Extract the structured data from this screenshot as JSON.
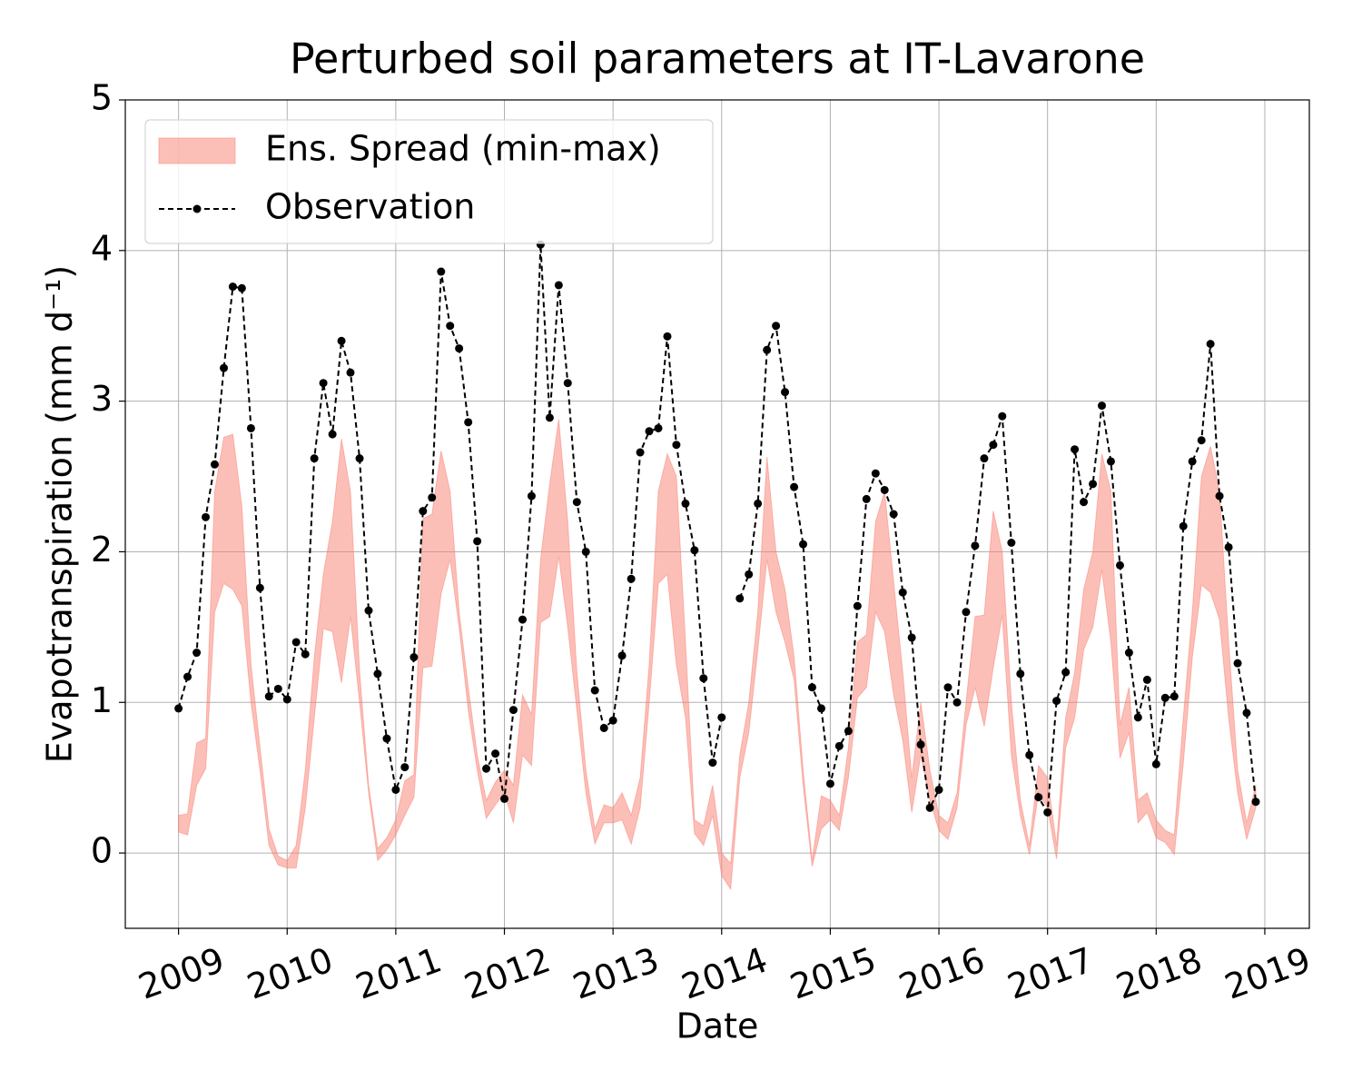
{
  "chart_data": {
    "type": "line",
    "title": "Perturbed soil parameters at IT-Lavarone",
    "x_label": "Date",
    "y_label": "Evapotranspiration  (mm d⁻¹)",
    "x": [
      2009,
      2009.083,
      2009.167,
      2009.25,
      2009.333,
      2009.417,
      2009.5,
      2009.583,
      2009.667,
      2009.75,
      2009.833,
      2009.917,
      2010,
      2010.083,
      2010.167,
      2010.25,
      2010.333,
      2010.417,
      2010.5,
      2010.583,
      2010.667,
      2010.75,
      2010.833,
      2010.917,
      2011,
      2011.083,
      2011.167,
      2011.25,
      2011.333,
      2011.417,
      2011.5,
      2011.583,
      2011.667,
      2011.75,
      2011.833,
      2011.917,
      2012,
      2012.083,
      2012.167,
      2012.25,
      2012.333,
      2012.417,
      2012.5,
      2012.583,
      2012.667,
      2012.75,
      2012.833,
      2012.917,
      2013,
      2013.083,
      2013.167,
      2013.25,
      2013.333,
      2013.417,
      2013.5,
      2013.583,
      2013.667,
      2013.75,
      2013.833,
      2013.917,
      2014,
      2014.083,
      2014.167,
      2014.25,
      2014.333,
      2014.417,
      2014.5,
      2014.583,
      2014.667,
      2014.75,
      2014.833,
      2014.917,
      2015,
      2015.083,
      2015.167,
      2015.25,
      2015.333,
      2015.417,
      2015.5,
      2015.583,
      2015.667,
      2015.75,
      2015.833,
      2015.917,
      2016,
      2016.083,
      2016.167,
      2016.25,
      2016.333,
      2016.417,
      2016.5,
      2016.583,
      2016.667,
      2016.75,
      2016.833,
      2016.917,
      2017,
      2017.083,
      2017.167,
      2017.25,
      2017.333,
      2017.417,
      2017.5,
      2017.583,
      2017.667,
      2017.75,
      2017.833,
      2017.917,
      2018,
      2018.083,
      2018.167,
      2018.25,
      2018.333,
      2018.417,
      2018.5,
      2018.583,
      2018.667,
      2018.75,
      2018.833,
      2018.917
    ],
    "series": [
      {
        "name": "Ens. Spread (min-max)",
        "color": "#fa8072",
        "upper": [
          0.25,
          0.26,
          0.73,
          0.76,
          2.4,
          2.76,
          2.78,
          2.3,
          1.25,
          0.7,
          0.16,
          -0.02,
          -0.05,
          0.05,
          0.55,
          1.3,
          1.85,
          2.2,
          2.75,
          2.4,
          1.2,
          0.45,
          0.03,
          0.1,
          0.22,
          0.48,
          0.52,
          2.22,
          2.25,
          2.67,
          2.4,
          1.6,
          1.1,
          0.65,
          0.35,
          0.47,
          0.55,
          0.45,
          1.05,
          0.92,
          1.95,
          2.45,
          2.88,
          2.2,
          1.2,
          0.55,
          0.16,
          0.32,
          0.3,
          0.4,
          0.25,
          0.5,
          1.25,
          2.4,
          2.65,
          2.5,
          1.4,
          0.22,
          0.18,
          0.45,
          0.0,
          -0.07,
          0.65,
          1.0,
          1.6,
          2.63,
          2.0,
          1.75,
          1.3,
          0.55,
          -0.05,
          0.38,
          0.35,
          0.25,
          0.7,
          1.4,
          1.45,
          2.2,
          2.4,
          1.8,
          1.2,
          0.5,
          1.0,
          0.55,
          0.25,
          0.2,
          0.4,
          1.0,
          1.57,
          1.58,
          2.27,
          2.0,
          1.0,
          0.35,
          0.05,
          0.58,
          0.5,
          0.05,
          0.9,
          1.2,
          1.75,
          2.0,
          2.65,
          2.4,
          0.85,
          1.1,
          0.35,
          0.4,
          0.22,
          0.15,
          0.12,
          0.9,
          1.6,
          2.5,
          2.7,
          2.4,
          1.4,
          0.55,
          0.2,
          0.45
        ],
        "lower": [
          0.14,
          0.12,
          0.45,
          0.56,
          1.6,
          1.79,
          1.75,
          1.64,
          1.0,
          0.55,
          0.05,
          -0.08,
          -0.1,
          -0.1,
          0.3,
          0.9,
          1.49,
          1.47,
          1.13,
          1.57,
          1.0,
          0.4,
          -0.05,
          0.02,
          0.12,
          0.25,
          0.37,
          1.23,
          1.24,
          1.72,
          1.95,
          1.5,
          0.95,
          0.55,
          0.23,
          0.32,
          0.4,
          0.2,
          0.65,
          0.58,
          1.53,
          1.57,
          1.97,
          1.5,
          0.95,
          0.4,
          0.06,
          0.2,
          0.2,
          0.22,
          0.06,
          0.3,
          1.0,
          1.79,
          1.85,
          1.25,
          0.9,
          0.13,
          0.05,
          0.25,
          -0.15,
          -0.24,
          0.5,
          0.8,
          1.35,
          1.95,
          1.6,
          1.4,
          1.15,
          0.45,
          -0.09,
          0.16,
          0.22,
          0.15,
          0.5,
          1.03,
          1.1,
          1.6,
          1.47,
          1.05,
          0.75,
          0.27,
          0.65,
          0.35,
          0.15,
          0.09,
          0.3,
          0.85,
          1.1,
          0.84,
          1.23,
          1.58,
          0.65,
          0.25,
          -0.01,
          0.4,
          0.3,
          -0.04,
          0.7,
          0.9,
          1.35,
          1.5,
          1.88,
          1.4,
          0.63,
          0.8,
          0.2,
          0.27,
          0.1,
          0.07,
          -0.01,
          0.6,
          1.3,
          1.78,
          1.73,
          1.55,
          0.9,
          0.4,
          0.09,
          0.3
        ]
      },
      {
        "name": "Observation",
        "color": "#000000",
        "values": [
          0.96,
          1.17,
          1.33,
          2.23,
          2.58,
          3.22,
          3.76,
          3.75,
          2.82,
          1.76,
          1.04,
          1.09,
          1.02,
          1.4,
          1.32,
          2.62,
          3.12,
          2.78,
          3.4,
          3.19,
          2.62,
          1.61,
          1.19,
          0.76,
          0.42,
          0.57,
          1.3,
          2.27,
          2.36,
          3.86,
          3.5,
          3.35,
          2.86,
          2.07,
          0.56,
          0.66,
          0.36,
          0.95,
          1.55,
          2.37,
          4.04,
          2.89,
          3.77,
          3.12,
          2.33,
          2.0,
          1.08,
          0.83,
          0.88,
          1.31,
          1.82,
          2.66,
          2.8,
          2.82,
          3.43,
          2.71,
          2.32,
          2.01,
          1.16,
          0.6,
          0.9,
          null,
          1.69,
          1.85,
          2.32,
          3.34,
          3.5,
          3.06,
          2.43,
          2.05,
          1.1,
          0.96,
          0.46,
          0.71,
          0.81,
          1.64,
          2.35,
          2.52,
          2.41,
          2.25,
          1.73,
          1.43,
          0.72,
          0.3,
          0.42,
          1.1,
          1.0,
          1.6,
          2.04,
          2.62,
          2.71,
          2.9,
          2.06,
          1.19,
          0.65,
          0.37,
          0.27,
          1.01,
          1.2,
          2.68,
          2.33,
          2.45,
          2.97,
          2.6,
          1.91,
          1.33,
          0.9,
          1.15,
          0.59,
          1.03,
          1.04,
          2.17,
          2.6,
          2.74,
          3.38,
          2.37,
          2.03,
          1.26,
          0.93,
          0.34
        ]
      }
    ],
    "xlim": [
      2008.51,
      2019.41
    ],
    "xticks": [
      2009,
      2010,
      2011,
      2012,
      2013,
      2014,
      2015,
      2016,
      2017,
      2018,
      2019
    ],
    "ylim": [
      -0.5,
      5
    ],
    "yticks": [
      0,
      1,
      2,
      3,
      4,
      5
    ],
    "grid": true,
    "legend": "upper left"
  }
}
